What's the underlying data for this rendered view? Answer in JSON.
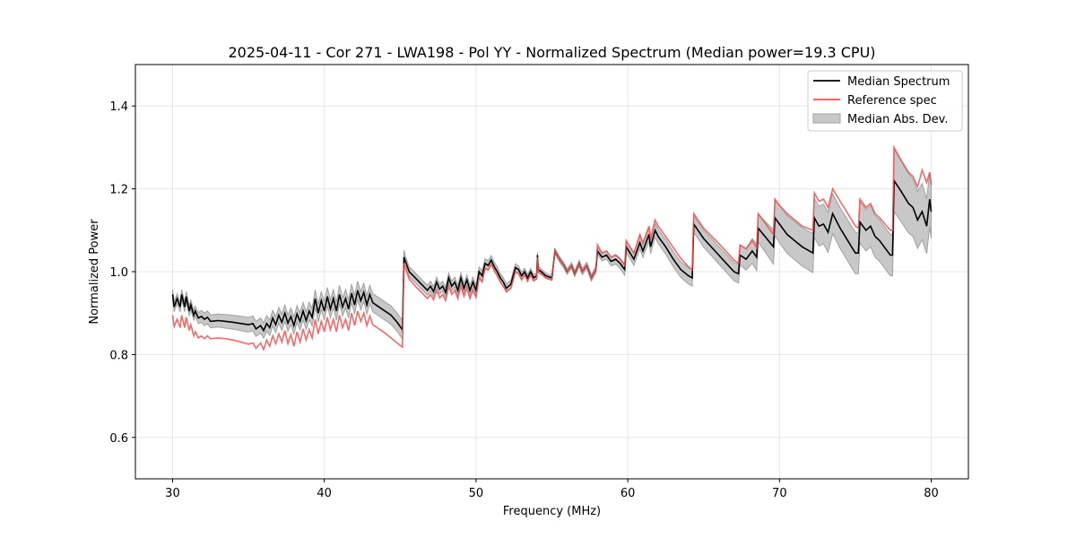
{
  "chart_data": {
    "type": "line",
    "title": "2025-04-11 - Cor 271 - LWA198 - Pol YY - Normalized Spectrum (Median power=19.3 CPU)",
    "xlabel": "Frequency (MHz)",
    "ylabel": "Normalized Power",
    "xlim": [
      27.55,
      82.45
    ],
    "ylim": [
      0.5,
      1.5
    ],
    "x_ticks": [
      30,
      40,
      50,
      60,
      70,
      80
    ],
    "x_tick_labels": [
      "30",
      "40",
      "50",
      "60",
      "70",
      "80"
    ],
    "y_ticks": [
      0.6,
      0.8,
      1.0,
      1.2,
      1.4
    ],
    "y_tick_labels": [
      "0.6",
      "0.8",
      "1.0",
      "1.2",
      "1.4"
    ],
    "grid": true,
    "legend": {
      "placement": "top-right",
      "entries": [
        {
          "label": "Median Spectrum",
          "kind": "line",
          "color": "#000000"
        },
        {
          "label": "Reference spec",
          "kind": "line",
          "color": "#f05050"
        },
        {
          "label": "Median Abs. Dev.",
          "kind": "patch",
          "color": "#c8c8c8"
        }
      ]
    },
    "colors": {
      "median": "#000000",
      "reference": "#f05050",
      "mad_fill": "#c8c8c8",
      "mad_edge": "#a0a0a0",
      "grid": "#e6e6e6"
    },
    "series": [
      {
        "name": "Median Spectrum",
        "x": [
          30.0,
          30.1,
          30.3,
          30.5,
          30.6,
          30.8,
          30.9,
          31.1,
          31.2,
          31.4,
          31.5,
          31.7,
          31.9,
          32.1,
          32.3,
          32.5,
          33.0,
          33.5,
          34.0,
          34.5,
          35.0,
          35.3,
          35.5,
          35.8,
          36.0,
          36.2,
          36.4,
          36.6,
          36.8,
          37.0,
          37.2,
          37.4,
          37.6,
          37.8,
          38.0,
          38.2,
          38.4,
          38.6,
          38.8,
          39.0,
          39.2,
          39.4,
          39.6,
          39.8,
          40.0,
          40.2,
          40.4,
          40.6,
          40.8,
          41.0,
          41.2,
          41.4,
          41.6,
          41.8,
          42.0,
          42.2,
          42.4,
          42.6,
          42.8,
          43.0,
          43.2,
          43.6,
          44.0,
          44.4,
          44.8,
          45.15,
          45.25,
          45.35,
          45.6,
          46.0,
          46.4,
          46.8,
          47.0,
          47.2,
          47.4,
          47.6,
          47.8,
          48.0,
          48.2,
          48.4,
          48.6,
          48.8,
          49.0,
          49.2,
          49.4,
          49.6,
          49.8,
          50.0,
          50.2,
          50.4,
          50.6,
          50.8,
          51.0,
          51.2,
          51.4,
          51.6,
          51.8,
          52.0,
          52.3,
          52.6,
          52.8,
          53.0,
          53.2,
          53.4,
          53.6,
          53.8,
          54.0,
          54.05,
          54.1,
          54.3,
          54.6,
          55.0,
          55.2,
          55.5,
          55.8,
          56.0,
          56.3,
          56.5,
          56.8,
          57.0,
          57.3,
          57.6,
          57.9,
          58.0,
          58.3,
          58.6,
          58.9,
          59.2,
          59.5,
          59.8,
          59.9,
          60.4,
          60.8,
          61.0,
          61.4,
          61.5,
          61.8,
          62.0,
          62.5,
          63.0,
          63.5,
          64.0,
          64.25,
          64.35,
          65.0,
          66.0,
          66.5,
          67.0,
          67.3,
          67.4,
          67.8,
          68.2,
          68.5,
          68.6,
          69.6,
          69.7,
          70.0,
          70.5,
          71.0,
          71.5,
          72.2,
          72.3,
          72.6,
          72.9,
          73.2,
          73.5,
          74.0,
          74.5,
          75.0,
          75.2,
          75.3,
          75.7,
          76.0,
          76.3,
          76.6,
          77.3,
          77.45,
          77.55,
          78.0,
          78.5,
          78.8,
          79.1,
          79.4,
          79.7,
          79.9,
          80.0
        ],
        "y": [
          0.945,
          0.915,
          0.935,
          0.915,
          0.945,
          0.915,
          0.94,
          0.905,
          0.92,
          0.895,
          0.905,
          0.888,
          0.892,
          0.885,
          0.89,
          0.88,
          0.882,
          0.88,
          0.878,
          0.875,
          0.872,
          0.875,
          0.862,
          0.87,
          0.858,
          0.875,
          0.865,
          0.888,
          0.872,
          0.895,
          0.878,
          0.9,
          0.876,
          0.892,
          0.87,
          0.898,
          0.88,
          0.905,
          0.882,
          0.905,
          0.89,
          0.935,
          0.9,
          0.93,
          0.905,
          0.94,
          0.91,
          0.935,
          0.905,
          0.945,
          0.915,
          0.935,
          0.91,
          0.948,
          0.92,
          0.955,
          0.93,
          0.95,
          0.92,
          0.945,
          0.925,
          0.915,
          0.905,
          0.895,
          0.878,
          0.86,
          1.035,
          1.025,
          1.0,
          0.985,
          0.97,
          0.955,
          0.965,
          0.952,
          0.975,
          0.958,
          0.965,
          0.95,
          0.985,
          0.965,
          0.975,
          0.955,
          0.985,
          0.96,
          0.98,
          0.955,
          0.975,
          0.955,
          1.0,
          0.99,
          1.02,
          1.015,
          1.028,
          1.012,
          1.0,
          0.985,
          0.975,
          0.96,
          0.97,
          1.01,
          1.005,
          0.99,
          1.0,
          0.985,
          1.0,
          0.985,
          0.99,
          1.04,
          1.005,
          1.0,
          0.99,
          0.985,
          1.05,
          1.03,
          1.015,
          1.0,
          1.015,
          0.995,
          1.02,
          1.0,
          1.015,
          0.985,
          1.005,
          1.05,
          1.035,
          1.04,
          1.025,
          1.03,
          1.02,
          1.005,
          1.06,
          1.03,
          1.07,
          1.05,
          1.09,
          1.06,
          1.1,
          1.085,
          1.06,
          1.03,
          1.005,
          0.99,
          0.985,
          1.115,
          1.08,
          1.04,
          1.02,
          1.0,
          0.995,
          1.04,
          1.03,
          1.05,
          1.035,
          1.105,
          1.06,
          1.13,
          1.115,
          1.09,
          1.075,
          1.06,
          1.045,
          1.13,
          1.11,
          1.115,
          1.095,
          1.14,
          1.105,
          1.075,
          1.045,
          1.045,
          1.12,
          1.1,
          1.11,
          1.085,
          1.075,
          1.04,
          1.04,
          1.22,
          1.195,
          1.165,
          1.155,
          1.125,
          1.145,
          1.11,
          1.175,
          1.145
        ]
      },
      {
        "name": "Reference spec",
        "x": [
          30.0,
          30.1,
          30.3,
          30.5,
          30.6,
          30.8,
          30.9,
          31.1,
          31.2,
          31.4,
          31.5,
          31.7,
          31.9,
          32.1,
          32.3,
          32.5,
          33.0,
          33.5,
          34.0,
          34.5,
          35.0,
          35.3,
          35.5,
          35.8,
          36.0,
          36.2,
          36.4,
          36.6,
          36.8,
          37.0,
          37.2,
          37.4,
          37.6,
          37.8,
          38.0,
          38.2,
          38.4,
          38.6,
          38.8,
          39.0,
          39.2,
          39.4,
          39.6,
          39.8,
          40.0,
          40.2,
          40.4,
          40.6,
          40.8,
          41.0,
          41.2,
          41.4,
          41.6,
          41.8,
          42.0,
          42.2,
          42.4,
          42.6,
          42.8,
          43.0,
          43.2,
          43.6,
          44.0,
          44.4,
          44.8,
          45.15,
          45.25,
          45.35,
          45.6,
          46.0,
          46.4,
          46.8,
          47.0,
          47.2,
          47.4,
          47.6,
          47.8,
          48.0,
          48.2,
          48.4,
          48.6,
          48.8,
          49.0,
          49.2,
          49.4,
          49.6,
          49.8,
          50.0,
          50.2,
          50.4,
          50.6,
          50.8,
          51.0,
          51.2,
          51.4,
          51.6,
          51.8,
          52.0,
          52.3,
          52.6,
          52.8,
          53.0,
          53.2,
          53.4,
          53.6,
          53.8,
          54.0,
          54.05,
          54.1,
          54.3,
          54.6,
          55.0,
          55.2,
          55.5,
          55.8,
          56.0,
          56.3,
          56.5,
          56.8,
          57.0,
          57.3,
          57.6,
          57.9,
          58.0,
          58.3,
          58.6,
          58.9,
          59.2,
          59.5,
          59.8,
          59.9,
          60.4,
          60.8,
          61.0,
          61.4,
          61.5,
          61.8,
          62.0,
          62.5,
          63.0,
          63.5,
          64.0,
          64.25,
          64.35,
          65.0,
          66.0,
          66.5,
          67.0,
          67.3,
          67.4,
          67.8,
          68.2,
          68.5,
          68.6,
          69.6,
          69.7,
          70.0,
          70.5,
          71.0,
          71.5,
          72.2,
          72.3,
          72.6,
          72.9,
          73.2,
          73.5,
          74.0,
          74.5,
          75.0,
          75.2,
          75.3,
          75.7,
          76.0,
          76.3,
          76.6,
          77.3,
          77.45,
          77.55,
          78.0,
          78.5,
          78.8,
          79.1,
          79.4,
          79.7,
          79.9,
          80.0
        ],
        "y": [
          0.895,
          0.868,
          0.885,
          0.865,
          0.895,
          0.865,
          0.89,
          0.858,
          0.872,
          0.845,
          0.855,
          0.84,
          0.845,
          0.838,
          0.845,
          0.838,
          0.84,
          0.838,
          0.835,
          0.83,
          0.825,
          0.828,
          0.815,
          0.828,
          0.812,
          0.835,
          0.82,
          0.845,
          0.826,
          0.85,
          0.83,
          0.858,
          0.826,
          0.848,
          0.82,
          0.855,
          0.83,
          0.862,
          0.835,
          0.86,
          0.84,
          0.885,
          0.85,
          0.88,
          0.855,
          0.89,
          0.86,
          0.885,
          0.855,
          0.895,
          0.865,
          0.885,
          0.858,
          0.9,
          0.87,
          0.905,
          0.88,
          0.9,
          0.87,
          0.893,
          0.872,
          0.862,
          0.852,
          0.84,
          0.828,
          0.818,
          1.02,
          1.008,
          0.982,
          0.965,
          0.95,
          0.935,
          0.945,
          0.932,
          0.955,
          0.937,
          0.945,
          0.93,
          0.965,
          0.945,
          0.955,
          0.935,
          0.965,
          0.94,
          0.96,
          0.935,
          0.955,
          0.938,
          0.985,
          0.975,
          1.008,
          1.004,
          1.018,
          1.003,
          0.99,
          0.975,
          0.965,
          0.952,
          0.96,
          1.0,
          0.995,
          0.98,
          0.992,
          0.977,
          0.992,
          0.978,
          0.983,
          1.035,
          1.0,
          0.995,
          0.985,
          0.98,
          1.05,
          1.03,
          1.015,
          1.0,
          1.015,
          0.995,
          1.02,
          1.0,
          1.015,
          0.985,
          1.005,
          1.065,
          1.045,
          1.05,
          1.035,
          1.04,
          1.03,
          1.015,
          1.075,
          1.045,
          1.09,
          1.07,
          1.11,
          1.08,
          1.125,
          1.11,
          1.085,
          1.058,
          1.032,
          1.012,
          1.005,
          1.14,
          1.105,
          1.068,
          1.048,
          1.028,
          1.02,
          1.065,
          1.055,
          1.075,
          1.058,
          1.14,
          1.09,
          1.175,
          1.16,
          1.14,
          1.125,
          1.11,
          1.1,
          1.19,
          1.17,
          1.175,
          1.155,
          1.2,
          1.17,
          1.14,
          1.11,
          1.105,
          1.175,
          1.155,
          1.165,
          1.14,
          1.13,
          1.1,
          1.1,
          1.3,
          1.27,
          1.24,
          1.23,
          1.205,
          1.245,
          1.215,
          1.24,
          1.21
        ]
      },
      {
        "name": "Median Abs. Dev.",
        "kind": "band_halfwidth_around_median",
        "x": [
          30.0,
          31.5,
          32.0,
          35.5,
          40.0,
          45.2,
          45.3,
          50.0,
          52.0,
          55.0,
          58.0,
          60.0,
          64.3,
          67.3,
          70.0,
          75.0,
          77.45,
          77.55,
          80.0
        ],
        "halfwidth": [
          0.012,
          0.012,
          0.015,
          0.018,
          0.022,
          0.022,
          0.012,
          0.012,
          0.01,
          0.006,
          0.008,
          0.014,
          0.02,
          0.022,
          0.045,
          0.05,
          0.05,
          0.075,
          0.065
        ]
      }
    ]
  }
}
